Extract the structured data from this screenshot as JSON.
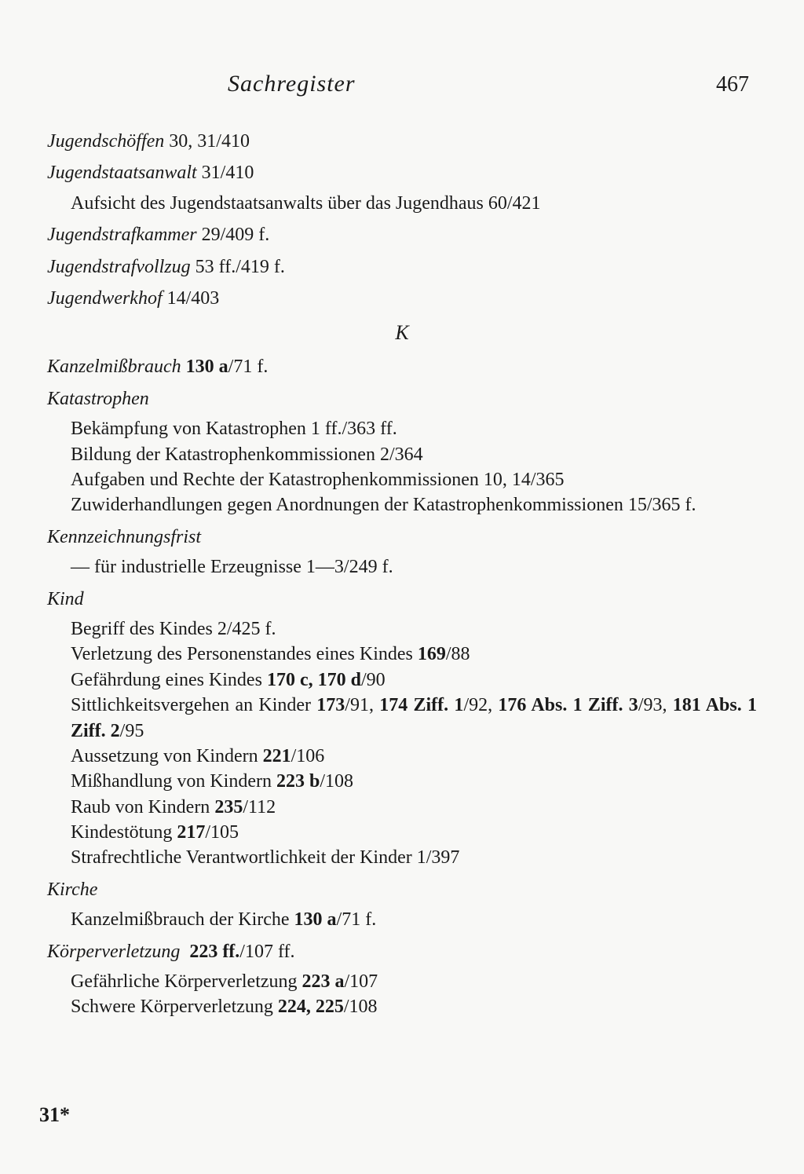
{
  "header": {
    "title": "Sachregister",
    "page": "467"
  },
  "entries": [
    {
      "term": "Jugendschöffen",
      "refs": " 30, 31/410"
    },
    {
      "term": "Jugendstaatsanwalt",
      "refs": " 31/410",
      "subs": [
        {
          "text": "Aufsicht des Jugendstaatsanwalts über das Jugendhaus 60/421"
        }
      ]
    },
    {
      "term": "Jugendstrafkammer",
      "refs": " 29/409 f."
    },
    {
      "term": "Jugendstrafvollzug",
      "refs": " 53 ff./419 f."
    },
    {
      "term": "Jugendwerkhof",
      "refs": " 14/403"
    }
  ],
  "sectionLetter": "K",
  "entriesK": [
    {
      "term": "Kanzelmißbrauch",
      "refs_bold": " 130 a",
      "refs_after": "/71 f."
    },
    {
      "term": "Katastrophen",
      "refs": "",
      "subs": [
        {
          "text": "Bekämpfung von Katastrophen 1 ff./363 ff."
        },
        {
          "text": "Bildung der Katastrophenkommissionen 2/364"
        },
        {
          "text": "Aufgaben und Rechte der Katastrophenkommissionen 10, 14/365"
        },
        {
          "text": "Zuwiderhandlungen gegen Anordnungen der Katastrophenkommissionen 15/365 f."
        }
      ]
    },
    {
      "term": "Kennzeichnungsfrist",
      "refs": "",
      "subs": [
        {
          "text": "— für industrielle Erzeugnisse 1—3/249 f."
        }
      ]
    },
    {
      "term": "Kind",
      "refs": "",
      "subs": [
        {
          "text": "Begriff des Kindes 2/425 f."
        },
        {
          "pre": "Verletzung des Personenstandes eines Kindes ",
          "bold": "169",
          "post": "/88"
        },
        {
          "pre": "Gefährdung eines Kindes ",
          "bold": "170 c, 170 d",
          "post": "/90"
        },
        {
          "pre": "Sittlichkeitsvergehen an Kinder ",
          "bold": "173",
          "mid1": "/91, ",
          "bold2": "174 Ziff. 1",
          "mid2": "/92, ",
          "bold3": "176 Abs. 1 Ziff. 3",
          "mid3": "/93, ",
          "bold4": "181 Abs. 1 Ziff. 2",
          "post": "/95"
        },
        {
          "pre": "Aussetzung von Kindern ",
          "bold": "221",
          "post": "/106"
        },
        {
          "pre": "Mißhandlung von Kindern ",
          "bold": "223 b",
          "post": "/108"
        },
        {
          "pre": "Raub von Kindern ",
          "bold": "235",
          "post": "/112"
        },
        {
          "pre": "Kindestötung ",
          "bold": "217",
          "post": "/105"
        },
        {
          "text": "Strafrechtliche Verantwortlichkeit der Kinder 1/397"
        }
      ]
    },
    {
      "term": "Kirche",
      "refs": "",
      "subs": [
        {
          "pre": "Kanzelmißbrauch der Kirche ",
          "bold": "130 a",
          "post": "/71 f."
        }
      ]
    },
    {
      "term": "Körperverletzung",
      "refs_bold": " 223 ff.",
      "refs_after": "/107 ff.",
      "subs": [
        {
          "pre": "Gefährliche Körperverletzung ",
          "bold": "223 a",
          "post": "/107"
        },
        {
          "pre": "Schwere Körperverletzung ",
          "bold": "224, 225",
          "post": "/108"
        }
      ]
    }
  ],
  "footer": "31*"
}
